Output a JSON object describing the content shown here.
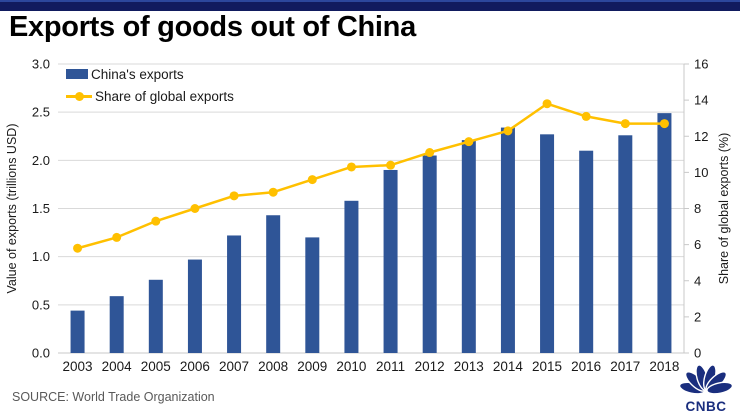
{
  "banner": {
    "color": "#111b5e"
  },
  "title": "Exports of goods out of China",
  "source": "SOURCE: World Trade Organization",
  "logo": {
    "text": "CNBC",
    "color": "#1a2e7e",
    "icon": "peacock-icon"
  },
  "colors": {
    "bar": "#2f5597",
    "line": "#ffc000",
    "grid": "#d9d9d9",
    "axis_text": "#1a1a1a",
    "source_text": "#595959"
  },
  "chart_data": {
    "type": "bar+line (dual axis combo)",
    "title": "Exports of goods out of China",
    "categories": [
      "2003",
      "2004",
      "2005",
      "2006",
      "2007",
      "2008",
      "2009",
      "2010",
      "2011",
      "2012",
      "2013",
      "2014",
      "2015",
      "2016",
      "2017",
      "2018"
    ],
    "series": [
      {
        "name": "China's exports",
        "type": "bar",
        "axis": "left",
        "color": "#2f5597",
        "values": [
          0.44,
          0.59,
          0.76,
          0.97,
          1.22,
          1.43,
          1.2,
          1.58,
          1.9,
          2.05,
          2.21,
          2.34,
          2.27,
          2.1,
          2.26,
          2.49
        ]
      },
      {
        "name": "Share of global exports",
        "type": "line",
        "axis": "right",
        "color": "#ffc000",
        "values": [
          5.8,
          6.4,
          7.3,
          8.0,
          8.7,
          8.9,
          9.6,
          10.3,
          10.4,
          11.1,
          11.7,
          12.3,
          13.8,
          13.1,
          12.7,
          12.7
        ]
      }
    ],
    "left_axis": {
      "label": "Value of exports (trillions USD)",
      "tick_labels": [
        "0.0",
        "0.5",
        "1.0",
        "1.5",
        "2.0",
        "2.5",
        "3.0"
      ],
      "tick_values": [
        0,
        0.5,
        1,
        1.5,
        2,
        2.5,
        3
      ],
      "min": 0,
      "max": 3
    },
    "right_axis": {
      "label": "Share of global exports (%)",
      "tick_labels": [
        "0",
        "2",
        "4",
        "6",
        "8",
        "10",
        "12",
        "14",
        "16"
      ],
      "tick_values": [
        0,
        2,
        4,
        6,
        8,
        10,
        12,
        14,
        16
      ],
      "min": 0,
      "max": 16
    },
    "grid": true,
    "legend_position": "top-left inside plot"
  }
}
